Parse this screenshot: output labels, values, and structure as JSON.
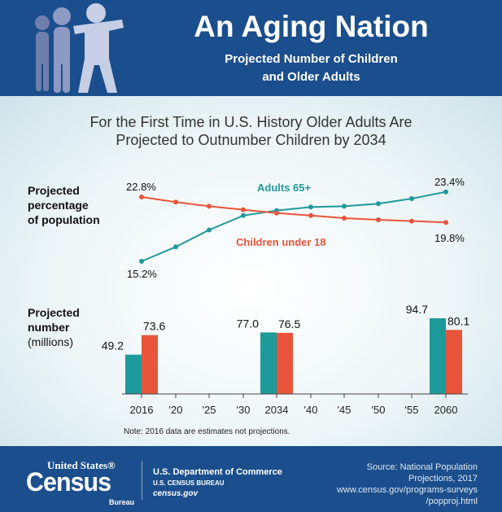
{
  "header": {
    "title": "An Aging Nation",
    "subtitle_line1": "Projected Number of Children",
    "subtitle_line2": "and Older Adults"
  },
  "headline": {
    "line1": "For the First Time in U.S. History Older Adults Are",
    "line2": "Projected to Outnumber Children by 2034"
  },
  "labels": {
    "pct_line1": "Projected",
    "pct_line2": "percentage",
    "pct_line3": "of population",
    "num_line1": "Projected",
    "num_line2": "number",
    "num_line3": "(millions)"
  },
  "note": "Note: 2016 data are estimates not projections.",
  "footer": {
    "logo_top": "United States®",
    "logo_main": "Census",
    "logo_sub": "Bureau",
    "dept": "U.S. Department of Commerce",
    "bureau": "U.S. CENSUS BUREAU",
    "site": "census.gov",
    "source_line1": "Source: National Population",
    "source_line2": "Projections, 2017",
    "source_line3": "www.census.gov/programs-surveys",
    "source_line4": "/popproj.html"
  },
  "colors": {
    "adults": "#1f9a9a",
    "children": "#e8553a"
  },
  "chart_data": [
    {
      "type": "line",
      "title": "Projected percentage of population",
      "x": [
        2016,
        2020,
        2025,
        2030,
        2034,
        2040,
        2045,
        2050,
        2055,
        2060
      ],
      "series": [
        {
          "name": "Adults 65+",
          "values": [
            15.2,
            16.9,
            18.9,
            20.6,
            21.2,
            21.6,
            21.7,
            22.0,
            22.6,
            23.4
          ],
          "labels": [
            "15.2%",
            "",
            "",
            "",
            "",
            "",
            "",
            "",
            "",
            "23.4%"
          ]
        },
        {
          "name": "Children under 18",
          "values": [
            22.8,
            22.2,
            21.7,
            21.3,
            20.9,
            20.6,
            20.3,
            20.1,
            19.95,
            19.8
          ],
          "labels": [
            "22.8%",
            "",
            "",
            "",
            "",
            "",
            "",
            "",
            "",
            "19.8%"
          ]
        }
      ],
      "ylim": [
        14,
        25
      ]
    },
    {
      "type": "bar",
      "title": "Projected number (millions)",
      "categories": [
        "2016",
        "'20",
        "'25",
        "'30",
        "2034",
        "'40",
        "'45",
        "'50",
        "'55",
        "2060"
      ],
      "series": [
        {
          "name": "Adults 65+",
          "values": [
            49.2,
            null,
            null,
            null,
            77.0,
            null,
            null,
            null,
            null,
            94.7
          ],
          "labels": [
            "49.2",
            "",
            "",
            "",
            "77.0",
            "",
            "",
            "",
            "",
            "94.7"
          ]
        },
        {
          "name": "Children under 18",
          "values": [
            73.6,
            null,
            null,
            null,
            76.5,
            null,
            null,
            null,
            null,
            80.1
          ],
          "labels": [
            "73.6",
            "",
            "",
            "",
            "76.5",
            "",
            "",
            "",
            "",
            "80.1"
          ]
        }
      ],
      "ylim": [
        0,
        100
      ]
    }
  ]
}
